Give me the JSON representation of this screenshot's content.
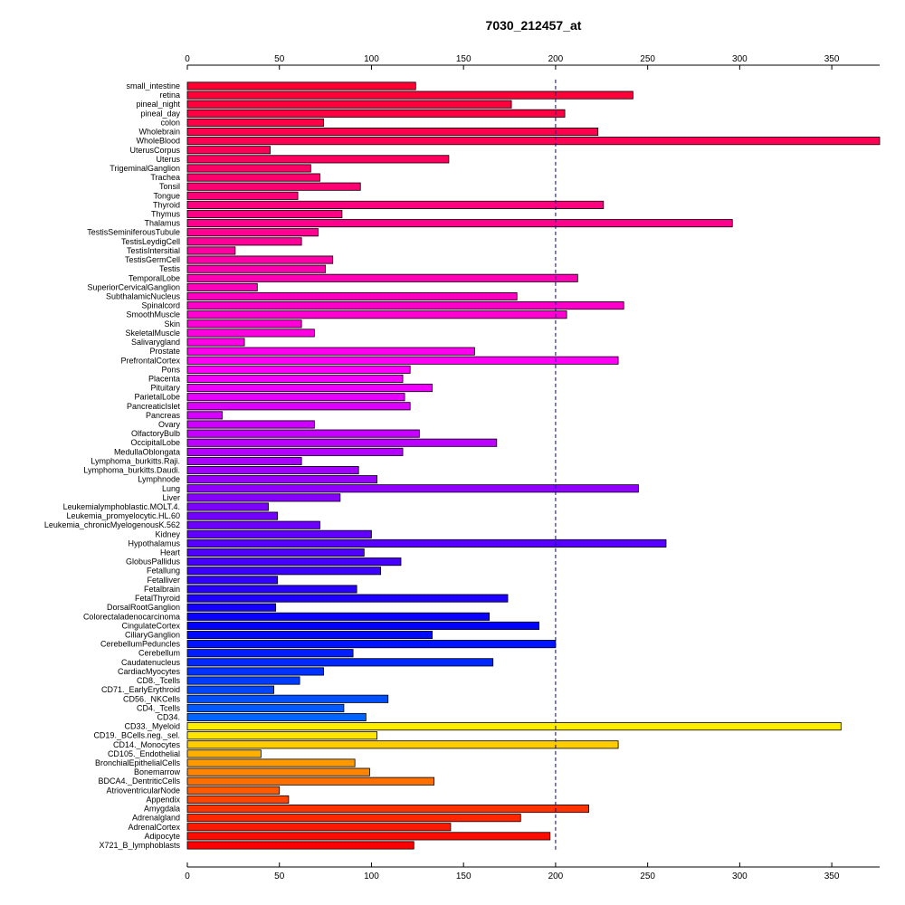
{
  "chart_data": {
    "type": "bar",
    "orientation": "horizontal",
    "title": "7030_212457_at",
    "xlabel": "",
    "ylabel": "",
    "xlim": [
      0,
      376
    ],
    "xticks": [
      0,
      50,
      100,
      150,
      200,
      250,
      300,
      350
    ],
    "xtick_labels": [
      "0",
      "50",
      "100",
      "150",
      "200",
      "250",
      "300",
      "350"
    ],
    "reference_line": 200,
    "grid": false,
    "categories": [
      "small_intestine",
      "retina",
      "pineal_night",
      "pineal_day",
      "colon",
      "Wholebrain",
      "WholeBlood",
      "UterusCorpus",
      "Uterus",
      "TrigeminalGanglion",
      "Trachea",
      "Tonsil",
      "Tongue",
      "Thyroid",
      "Thymus",
      "Thalamus",
      "TestisSeminiferousTubule",
      "TestisLeydigCell",
      "TestisIntersitial",
      "TestisGermCell",
      "Testis",
      "TemporalLobe",
      "SuperiorCervicalGanglion",
      "SubthalamicNucleus",
      "Spinalcord",
      "SmoothMuscle",
      "Skin",
      "SkeletalMuscle",
      "Salivarygland",
      "Prostate",
      "PrefrontalCortex",
      "Pons",
      "Placenta",
      "Pituitary",
      "ParietalLobe",
      "PancreaticIslet",
      "Pancreas",
      "Ovary",
      "OlfactoryBulb",
      "OccipitalLobe",
      "MedullaOblongata",
      "Lymphoma_burkitts.Raji.",
      "Lymphoma_burkitts.Daudi.",
      "Lymphnode",
      "Lung",
      "Liver",
      "Leukemialymphoblastic.MOLT.4.",
      "Leukemia_promyelocytic.HL.60",
      "Leukemia_chronicMyelogenousK.562",
      "Kidney",
      "Hypothalamus",
      "Heart",
      "GlobusPallidus",
      "Fetallung",
      "Fetalliver",
      "Fetalbrain",
      "FetalThyroid",
      "DorsalRootGanglion",
      "Colorectaladenocarcinoma",
      "CingulateCortex",
      "CiliaryGanglion",
      "CerebellumPeduncles",
      "Cerebellum",
      "Caudatenucleus",
      "CardiacMyocytes",
      "CD8._Tcells",
      "CD71._EarlyErythroid",
      "CD56._NKCells",
      "CD4._Tcells",
      "CD34.",
      "CD33._Myeloid",
      "CD19._BCells.neg._sel.",
      "CD14._Monocytes",
      "CD105._Endothelial",
      "BronchialEpithelialCells",
      "Bonemarrow",
      "BDCA4._DentriticCells",
      "AtrioventricularNode",
      "Appendix",
      "Amygdala",
      "Adrenalgland",
      "AdrenalCortex",
      "Adipocyte",
      "X721_B_lymphoblasts"
    ],
    "values": [
      124,
      242,
      176,
      205,
      74,
      223,
      377,
      45,
      142,
      67,
      72,
      94,
      60,
      226,
      84,
      296,
      71,
      62,
      26,
      79,
      75,
      212,
      38,
      179,
      237,
      206,
      62,
      69,
      31,
      156,
      234,
      121,
      117,
      133,
      118,
      121,
      19,
      69,
      126,
      168,
      117,
      62,
      93,
      103,
      245,
      83,
      44,
      49,
      72,
      100,
      260,
      96,
      116,
      105,
      49,
      92,
      174,
      48,
      164,
      191,
      133,
      200,
      90,
      166,
      74,
      61,
      47,
      109,
      85,
      97,
      355,
      103,
      234,
      40,
      91,
      99,
      134,
      50,
      55,
      218,
      181,
      143,
      197,
      123
    ],
    "colors": [
      "#FF0033",
      "#FF0038",
      "#FF003D",
      "#FF0043",
      "#FF0048",
      "#FF004E",
      "#FF0054",
      "#FF0059",
      "#FF005F",
      "#FF0066",
      "#FF006C",
      "#FF0072",
      "#FF0078",
      "#FF007F",
      "#FF0085",
      "#FF008C",
      "#FF0093",
      "#FF0099",
      "#FF00A0",
      "#FF00A7",
      "#FF00AE",
      "#FF00B5",
      "#FF00BC",
      "#FF00C3",
      "#FF00CB",
      "#FF00D2",
      "#FF00D9",
      "#FF00E1",
      "#FF00E8",
      "#FF00F0",
      "#FF00F7",
      "#FF00FF",
      "#F700FF",
      "#EF00FF",
      "#E700FF",
      "#DE00FF",
      "#D600FF",
      "#CD00FF",
      "#C500FF",
      "#BC00FF",
      "#B400FF",
      "#AB00FF",
      "#A200FF",
      "#9900FF",
      "#9000FF",
      "#8700FF",
      "#7E00FF",
      "#7400FF",
      "#6B00FF",
      "#6200FF",
      "#5800FF",
      "#4F00FF",
      "#4500FF",
      "#3C00FF",
      "#3200FF",
      "#2800FF",
      "#1E00FF",
      "#1400FF",
      "#0A00FF",
      "#0000FF",
      "#000AFF",
      "#0014FF",
      "#001EFF",
      "#0028FF",
      "#0032FF",
      "#003CFF",
      "#0046FF",
      "#0050FF",
      "#005AFF",
      "#0064FF",
      "#FFEE00",
      "#FFE500",
      "#FFCC00",
      "#FFB000",
      "#FF9900",
      "#FF8400",
      "#FF6F00",
      "#FF5A00",
      "#FF4400",
      "#FF3300",
      "#FF2600",
      "#FF1900",
      "#FF0C00",
      "#FF0000"
    ]
  }
}
